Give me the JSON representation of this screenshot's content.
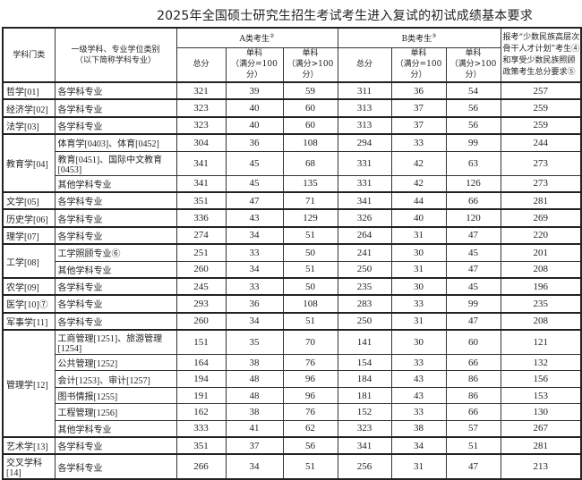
{
  "title": "2025年全国硕士研究生招生考试考生进入复试的初试成绩基本要求",
  "headers": {
    "category": "学科门类",
    "subject_line1": "一级学科、专业学位类别",
    "subject_line2": "（以下简称学科专业）",
    "group_a": "A类考生",
    "group_a_mark": "②",
    "group_b": "B类考生",
    "group_b_mark": "③",
    "total": "总分",
    "single": "单科",
    "single_eq": "（满分=100分）",
    "single_gt": "（满分>100分）",
    "special": "报考“少数民族高层次骨干人才计划”考生④和享受少数民族照顾政策考生总分要求⑤"
  },
  "rows": [
    {
      "category": "哲学[01]",
      "span": 1,
      "subject": "各学科专业",
      "v": [
        "321",
        "39",
        "59",
        "311",
        "36",
        "54",
        "257"
      ]
    },
    {
      "category": "经济学[02]",
      "span": 1,
      "subject": "各学科专业",
      "v": [
        "323",
        "40",
        "60",
        "313",
        "37",
        "56",
        "259"
      ]
    },
    {
      "category": "法学[03]",
      "span": 1,
      "subject": "各学科专业",
      "v": [
        "323",
        "40",
        "60",
        "313",
        "37",
        "56",
        "259"
      ]
    },
    {
      "category": "教育学[04]",
      "span": 3,
      "subject": "体育学[0403]、体育[0452]",
      "v": [
        "304",
        "36",
        "108",
        "294",
        "33",
        "99",
        "244"
      ]
    },
    {
      "subject": "教育[0451]、国际中文教育[0453]",
      "v": [
        "341",
        "45",
        "68",
        "331",
        "42",
        "63",
        "273"
      ]
    },
    {
      "subject": "其他学科专业",
      "v": [
        "341",
        "45",
        "135",
        "331",
        "42",
        "126",
        "273"
      ]
    },
    {
      "category": "文学[05]",
      "span": 1,
      "subject": "各学科专业",
      "v": [
        "351",
        "47",
        "71",
        "341",
        "44",
        "66",
        "281"
      ]
    },
    {
      "category": "历史学[06]",
      "span": 1,
      "subject": "各学科专业",
      "v": [
        "336",
        "43",
        "129",
        "326",
        "40",
        "120",
        "269"
      ]
    },
    {
      "category": "理学[07]",
      "span": 1,
      "subject": "各学科专业",
      "v": [
        "274",
        "34",
        "51",
        "264",
        "31",
        "47",
        "220"
      ]
    },
    {
      "category": "工学[08]",
      "span": 2,
      "subject": "工学照顾专业⑥",
      "v": [
        "251",
        "33",
        "50",
        "241",
        "30",
        "45",
        "201"
      ]
    },
    {
      "subject": "其他学科专业",
      "v": [
        "260",
        "34",
        "51",
        "250",
        "31",
        "47",
        "208"
      ]
    },
    {
      "category": "农学[09]",
      "span": 1,
      "subject": "各学科专业",
      "v": [
        "245",
        "33",
        "50",
        "235",
        "30",
        "45",
        "196"
      ]
    },
    {
      "category": "医学[10]⑦",
      "span": 1,
      "subject": "各学科专业",
      "v": [
        "293",
        "36",
        "108",
        "283",
        "33",
        "99",
        "235"
      ]
    },
    {
      "category": "军事学[11]",
      "span": 1,
      "subject": "各学科专业",
      "v": [
        "260",
        "34",
        "51",
        "250",
        "31",
        "47",
        "208"
      ]
    },
    {
      "category": "管理学[12]",
      "span": 6,
      "subject": "工商管理[1251]、旅游管理[1254]",
      "v": [
        "151",
        "35",
        "70",
        "141",
        "30",
        "60",
        "121"
      ]
    },
    {
      "subject": "公共管理[1252]",
      "v": [
        "164",
        "38",
        "76",
        "154",
        "33",
        "66",
        "132"
      ]
    },
    {
      "subject": "会计[1253]、审计[1257]",
      "v": [
        "194",
        "48",
        "96",
        "184",
        "43",
        "86",
        "156"
      ]
    },
    {
      "subject": "图书情报[1255]",
      "v": [
        "191",
        "48",
        "96",
        "181",
        "43",
        "86",
        "153"
      ]
    },
    {
      "subject": "工程管理[1256]",
      "v": [
        "162",
        "38",
        "76",
        "152",
        "33",
        "66",
        "130"
      ]
    },
    {
      "subject": "其他学科专业",
      "v": [
        "333",
        "41",
        "62",
        "323",
        "38",
        "57",
        "267"
      ]
    },
    {
      "category": "艺术学[13]",
      "span": 1,
      "subject": "各学科专业",
      "v": [
        "351",
        "37",
        "56",
        "341",
        "34",
        "51",
        "281"
      ]
    },
    {
      "category": "交叉学科[14]",
      "span": 1,
      "subject": "各学科专业",
      "v": [
        "266",
        "34",
        "51",
        "256",
        "31",
        "47",
        "213"
      ]
    }
  ]
}
